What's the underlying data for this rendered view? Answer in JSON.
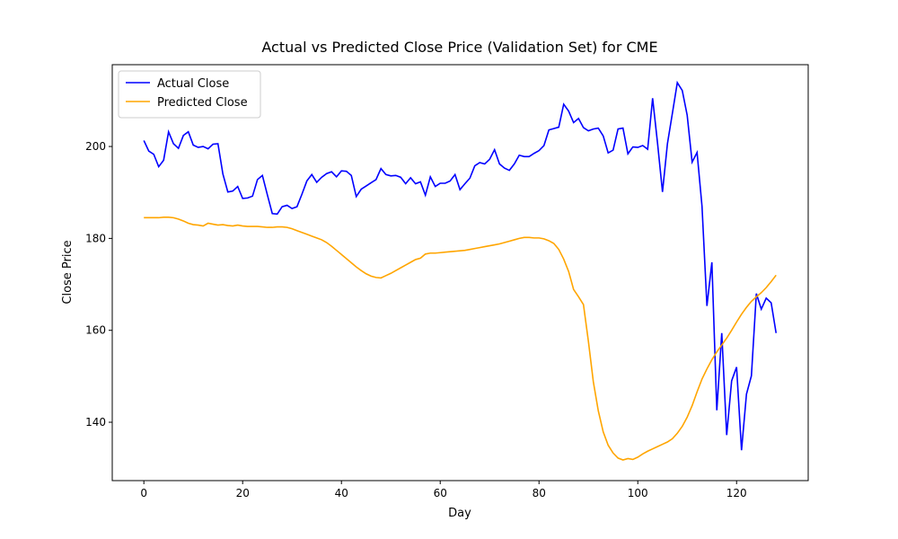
{
  "chart_data": {
    "type": "line",
    "title": "Actual vs Predicted Close Price (Validation Set) for CME",
    "xlabel": "Day",
    "ylabel": "Close Price",
    "x": [
      0,
      1,
      2,
      3,
      4,
      5,
      6,
      7,
      8,
      9,
      10,
      11,
      12,
      13,
      14,
      15,
      16,
      17,
      18,
      19,
      20,
      21,
      22,
      23,
      24,
      25,
      26,
      27,
      28,
      29,
      30,
      31,
      32,
      33,
      34,
      35,
      36,
      37,
      38,
      39,
      40,
      41,
      42,
      43,
      44,
      45,
      46,
      47,
      48,
      49,
      50,
      51,
      52,
      53,
      54,
      55,
      56,
      57,
      58,
      59,
      60,
      61,
      62,
      63,
      64,
      65,
      66,
      67,
      68,
      69,
      70,
      71,
      72,
      73,
      74,
      75,
      76,
      77,
      78,
      79,
      80,
      81,
      82,
      83,
      84,
      85,
      86,
      87,
      88,
      89,
      90,
      91,
      92,
      93,
      94,
      95,
      96,
      97,
      98,
      99,
      100,
      101,
      102,
      103,
      104,
      105,
      106,
      107,
      108,
      109,
      110,
      111,
      112,
      113,
      114,
      115,
      116,
      117,
      118,
      119,
      120,
      121,
      122,
      123,
      124,
      125,
      126,
      127,
      128
    ],
    "series": [
      {
        "name": "Actual Close",
        "color": "#0000ff",
        "values": [
          201.3,
          199,
          198.3,
          195.6,
          197,
          203.2,
          200.6,
          199.6,
          202.4,
          203.2,
          200.3,
          199.8,
          200,
          199.5,
          200.5,
          200.6,
          194,
          190.1,
          190.3,
          191.3,
          188.7,
          188.8,
          189.2,
          192.8,
          193.7,
          189.5,
          185.4,
          185.3,
          186.9,
          187.2,
          186.5,
          186.9,
          189.6,
          192.5,
          193.9,
          192.2,
          193.3,
          194.1,
          194.5,
          193.4,
          194.7,
          194.6,
          193.7,
          189.1,
          190.7,
          191.4,
          192.1,
          192.8,
          195.2,
          193.9,
          193.6,
          193.7,
          193.3,
          191.9,
          193.2,
          191.9,
          192.3,
          189.4,
          193.4,
          191.3,
          192,
          192,
          192.5,
          193.9,
          190.6,
          191.9,
          193.1,
          195.8,
          196.5,
          196.2,
          197.2,
          199.3,
          196.2,
          195.3,
          194.8,
          196.2,
          198.1,
          197.8,
          197.8,
          198.5,
          199.1,
          200.2,
          203.6,
          203.9,
          204.2,
          209.2,
          207.7,
          205.2,
          206.1,
          204.1,
          203.4,
          203.8,
          204,
          202.3,
          198.6,
          199.2,
          203.8,
          204,
          198.4,
          199.9,
          199.8,
          200.2,
          199.4,
          210.5,
          200.7,
          190.1,
          200.6,
          207.2,
          213.9,
          212.2,
          206.8,
          196.6,
          198.7,
          187,
          165.3,
          174.8,
          142.6,
          159.4,
          137.2,
          149,
          152,
          133.9,
          146.1,
          150.1,
          168,
          164.6,
          167,
          166,
          159.4
        ]
      },
      {
        "name": "Predicted Close",
        "color": "#ffa500",
        "values": [
          184.5,
          184.5,
          184.5,
          184.5,
          184.6,
          184.6,
          184.5,
          184.2,
          183.8,
          183.3,
          183,
          182.9,
          182.7,
          183.3,
          183.1,
          182.9,
          183,
          182.8,
          182.7,
          182.9,
          182.7,
          182.6,
          182.6,
          182.6,
          182.5,
          182.4,
          182.4,
          182.5,
          182.5,
          182.4,
          182.1,
          181.7,
          181.3,
          180.9,
          180.5,
          180.1,
          179.7,
          179.1,
          178.3,
          177.4,
          176.5,
          175.6,
          174.7,
          173.8,
          173,
          172.3,
          171.8,
          171.5,
          171.4,
          171.9,
          172.4,
          173,
          173.6,
          174.2,
          174.8,
          175.4,
          175.7,
          176.6,
          176.8,
          176.8,
          176.9,
          177,
          177.1,
          177.2,
          177.3,
          177.4,
          177.6,
          177.8,
          178,
          178.2,
          178.4,
          178.6,
          178.8,
          179.1,
          179.4,
          179.7,
          180,
          180.2,
          180.2,
          180.1,
          180.1,
          179.9,
          179.5,
          178.9,
          177.6,
          175.5,
          172.8,
          168.9,
          167.3,
          165.6,
          157.6,
          148.8,
          142.5,
          137.9,
          135,
          133.3,
          132.2,
          131.8,
          132.1,
          131.9,
          132.4,
          133.1,
          133.7,
          134.2,
          134.7,
          135.2,
          135.7,
          136.4,
          137.6,
          139.1,
          141.1,
          143.6,
          146.6,
          149.4,
          151.6,
          153.6,
          155.3,
          156.8,
          158.3,
          160,
          161.8,
          163.5,
          165,
          166.3,
          167.3,
          168.2,
          169.3,
          170.6,
          172
        ]
      }
    ],
    "xlim": [
      -6.4,
      134.5
    ],
    "ylim": [
      127.3,
      217.8
    ],
    "xticks": [
      0,
      20,
      40,
      60,
      80,
      100,
      120
    ],
    "yticks": [
      140,
      160,
      180,
      200
    ],
    "grid": false,
    "legend": "upper left"
  }
}
